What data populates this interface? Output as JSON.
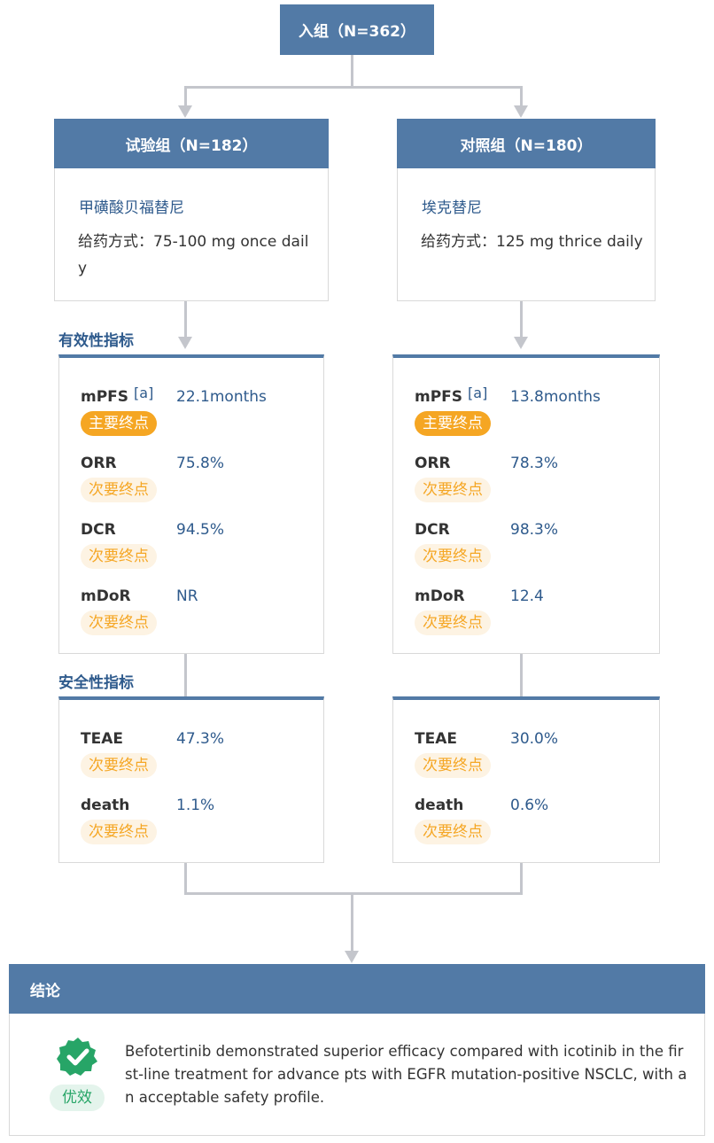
{
  "enrollment": {
    "label": "入组（N=362）"
  },
  "arms": [
    {
      "title": "试验组（N=182）",
      "drug": "甲磺酸贝福替尼",
      "dosing": "给药方式：75-100 mg once daily",
      "efficacy": [
        {
          "name": "mPFS",
          "note": "[a]",
          "value": "22.1months",
          "endpoint": "主要终点",
          "primary": true
        },
        {
          "name": "ORR",
          "note": "",
          "value": "75.8%",
          "endpoint": "次要终点",
          "primary": false
        },
        {
          "name": "DCR",
          "note": "",
          "value": "94.5%",
          "endpoint": "次要终点",
          "primary": false
        },
        {
          "name": "mDoR",
          "note": "",
          "value": "NR",
          "endpoint": "次要终点",
          "primary": false
        }
      ],
      "safety": [
        {
          "name": "TEAE",
          "note": "",
          "value": "47.3%",
          "endpoint": "次要终点",
          "primary": false
        },
        {
          "name": "death",
          "note": "",
          "value": "1.1%",
          "endpoint": "次要终点",
          "primary": false
        }
      ]
    },
    {
      "title": "对照组（N=180）",
      "drug": "埃克替尼",
      "dosing": "给药方式：125 mg thrice daily",
      "efficacy": [
        {
          "name": "mPFS",
          "note": "[a]",
          "value": "13.8months",
          "endpoint": "主要终点",
          "primary": true
        },
        {
          "name": "ORR",
          "note": "",
          "value": "78.3%",
          "endpoint": "次要终点",
          "primary": false
        },
        {
          "name": "DCR",
          "note": "",
          "value": "98.3%",
          "endpoint": "次要终点",
          "primary": false
        },
        {
          "name": "mDoR",
          "note": "",
          "value": "12.4",
          "endpoint": "次要终点",
          "primary": false
        }
      ],
      "safety": [
        {
          "name": "TEAE",
          "note": "",
          "value": "30.0%",
          "endpoint": "次要终点",
          "primary": false
        },
        {
          "name": "death",
          "note": "",
          "value": "0.6%",
          "endpoint": "次要终点",
          "primary": false
        }
      ]
    }
  ],
  "sections": {
    "efficacy": "有效性指标",
    "safety": "安全性指标"
  },
  "conclusion": {
    "title": "结论",
    "text": "Befotertinib demonstrated superior efficacy compared with icotinib in the first-line treatment for advance pts with EGFR mutation-positive NSCLC, with an acceptable safety profile.",
    "verdict": "优效",
    "icon": "verified-badge-icon",
    "icon_color": "#27a567"
  },
  "colors": {
    "header": "#527aa6",
    "link_text": "#2e5a8c",
    "primary_badge": "#f5a623",
    "secondary_badge_bg": "#fdf3e3",
    "connector": "#c4c6cc"
  }
}
